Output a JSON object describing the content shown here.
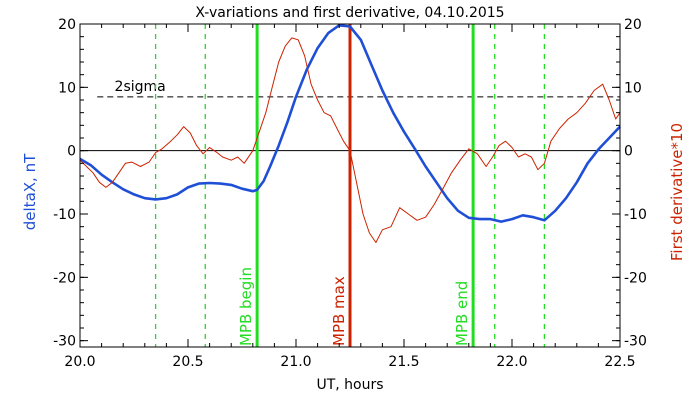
{
  "chart_data": {
    "type": "line",
    "title": "X-variations and first derivative, 04.10.2015",
    "xlabel": "UT, hours",
    "ylabel_left": "deltaX, nT",
    "ylabel_right": "First derivative*10",
    "xlim": [
      20.0,
      22.5
    ],
    "ylim": [
      -31,
      20
    ],
    "x_ticks": [
      "20.0",
      "20.5",
      "21.0",
      "21.5",
      "22.0",
      "22.5"
    ],
    "y_ticks": [
      "20",
      "10",
      "0",
      "-10",
      "-20",
      "-30"
    ],
    "threshold": {
      "label": "2sigma",
      "value": 8.5
    },
    "series": [
      {
        "name": "deltaX, nT",
        "color": "#1f4fd6",
        "points": [
          [
            20.0,
            -1.3
          ],
          [
            20.05,
            -2.3
          ],
          [
            20.1,
            -3.8
          ],
          [
            20.15,
            -5.0
          ],
          [
            20.2,
            -6.1
          ],
          [
            20.25,
            -6.9
          ],
          [
            20.3,
            -7.5
          ],
          [
            20.35,
            -7.7
          ],
          [
            20.4,
            -7.5
          ],
          [
            20.45,
            -6.9
          ],
          [
            20.5,
            -5.8
          ],
          [
            20.55,
            -5.2
          ],
          [
            20.6,
            -5.1
          ],
          [
            20.65,
            -5.2
          ],
          [
            20.7,
            -5.4
          ],
          [
            20.75,
            -6.0
          ],
          [
            20.8,
            -6.4
          ],
          [
            20.82,
            -6.2
          ],
          [
            20.85,
            -4.8
          ],
          [
            20.88,
            -2.5
          ],
          [
            20.92,
            0.8
          ],
          [
            20.96,
            4.5
          ],
          [
            21.0,
            8.5
          ],
          [
            21.05,
            12.8
          ],
          [
            21.1,
            16.2
          ],
          [
            21.15,
            18.6
          ],
          [
            21.2,
            19.8
          ],
          [
            21.25,
            19.6
          ],
          [
            21.3,
            17.5
          ],
          [
            21.35,
            13.5
          ],
          [
            21.4,
            9.5
          ],
          [
            21.45,
            6.0
          ],
          [
            21.5,
            3.0
          ],
          [
            21.55,
            0.3
          ],
          [
            21.6,
            -2.5
          ],
          [
            21.65,
            -5.0
          ],
          [
            21.7,
            -7.5
          ],
          [
            21.75,
            -9.5
          ],
          [
            21.8,
            -10.6
          ],
          [
            21.85,
            -10.8
          ],
          [
            21.9,
            -10.8
          ],
          [
            21.95,
            -11.2
          ],
          [
            22.0,
            -10.8
          ],
          [
            22.05,
            -10.2
          ],
          [
            22.1,
            -10.5
          ],
          [
            22.15,
            -11.0
          ],
          [
            22.2,
            -9.5
          ],
          [
            22.25,
            -7.5
          ],
          [
            22.3,
            -5.0
          ],
          [
            22.35,
            -2.0
          ],
          [
            22.4,
            0.2
          ],
          [
            22.45,
            2.0
          ],
          [
            22.5,
            3.8
          ]
        ]
      },
      {
        "name": "First derivative*10",
        "color": "#cc2200",
        "points": [
          [
            20.0,
            -1.5
          ],
          [
            20.03,
            -2.5
          ],
          [
            20.06,
            -3.5
          ],
          [
            20.09,
            -5.0
          ],
          [
            20.12,
            -5.8
          ],
          [
            20.15,
            -5.0
          ],
          [
            20.18,
            -3.5
          ],
          [
            20.21,
            -2.0
          ],
          [
            20.24,
            -1.8
          ],
          [
            20.28,
            -2.5
          ],
          [
            20.32,
            -1.8
          ],
          [
            20.35,
            -0.3
          ],
          [
            20.38,
            0.3
          ],
          [
            20.42,
            1.5
          ],
          [
            20.45,
            2.5
          ],
          [
            20.48,
            3.8
          ],
          [
            20.51,
            2.8
          ],
          [
            20.54,
            0.8
          ],
          [
            20.57,
            -0.5
          ],
          [
            20.6,
            0.5
          ],
          [
            20.63,
            -0.2
          ],
          [
            20.66,
            -1.0
          ],
          [
            20.7,
            -1.5
          ],
          [
            20.73,
            -1.0
          ],
          [
            20.76,
            -2.0
          ],
          [
            20.8,
            0.0
          ],
          [
            20.83,
            3.0
          ],
          [
            20.86,
            6.0
          ],
          [
            20.89,
            10.0
          ],
          [
            20.92,
            14.0
          ],
          [
            20.95,
            16.5
          ],
          [
            20.98,
            17.8
          ],
          [
            21.01,
            17.5
          ],
          [
            21.04,
            15.0
          ],
          [
            21.07,
            10.5
          ],
          [
            21.1,
            8.0
          ],
          [
            21.13,
            6.0
          ],
          [
            21.16,
            5.5
          ],
          [
            21.19,
            3.5
          ],
          [
            21.22,
            1.5
          ],
          [
            21.25,
            0.0
          ],
          [
            21.28,
            -5.0
          ],
          [
            21.31,
            -10.0
          ],
          [
            21.34,
            -13.0
          ],
          [
            21.37,
            -14.5
          ],
          [
            21.4,
            -12.5
          ],
          [
            21.44,
            -12.0
          ],
          [
            21.48,
            -9.0
          ],
          [
            21.52,
            -10.0
          ],
          [
            21.56,
            -11.0
          ],
          [
            21.6,
            -10.5
          ],
          [
            21.64,
            -8.5
          ],
          [
            21.68,
            -6.0
          ],
          [
            21.72,
            -3.5
          ],
          [
            21.76,
            -1.5
          ],
          [
            21.8,
            0.3
          ],
          [
            21.84,
            -0.5
          ],
          [
            21.88,
            -2.5
          ],
          [
            21.91,
            -1.0
          ],
          [
            21.94,
            0.8
          ],
          [
            21.97,
            1.5
          ],
          [
            22.0,
            0.5
          ],
          [
            22.03,
            -1.0
          ],
          [
            22.06,
            -0.5
          ],
          [
            22.09,
            -1.0
          ],
          [
            22.12,
            -3.0
          ],
          [
            22.15,
            -2.0
          ],
          [
            22.18,
            1.5
          ],
          [
            22.22,
            3.5
          ],
          [
            22.26,
            5.0
          ],
          [
            22.3,
            6.0
          ],
          [
            22.34,
            7.5
          ],
          [
            22.38,
            9.5
          ],
          [
            22.42,
            10.5
          ],
          [
            22.45,
            8.0
          ],
          [
            22.48,
            5.0
          ],
          [
            22.5,
            6.0
          ]
        ]
      }
    ],
    "vertical_lines": [
      {
        "x": 20.82,
        "style": "solid",
        "color": "#22dd22",
        "label": "MPB begin"
      },
      {
        "x": 21.25,
        "style": "solid",
        "color": "#cc2200",
        "label": "MPB max"
      },
      {
        "x": 21.82,
        "style": "solid",
        "color": "#22dd22",
        "label": "MPB end"
      },
      {
        "x": 20.35,
        "style": "dashed",
        "color": "#22dd22",
        "label": ""
      },
      {
        "x": 20.58,
        "style": "dashed",
        "color": "#22dd22",
        "label": ""
      },
      {
        "x": 21.92,
        "style": "dashed",
        "color": "#22dd22",
        "label": ""
      },
      {
        "x": 22.15,
        "style": "dashed",
        "color": "#22dd22",
        "label": ""
      }
    ]
  }
}
